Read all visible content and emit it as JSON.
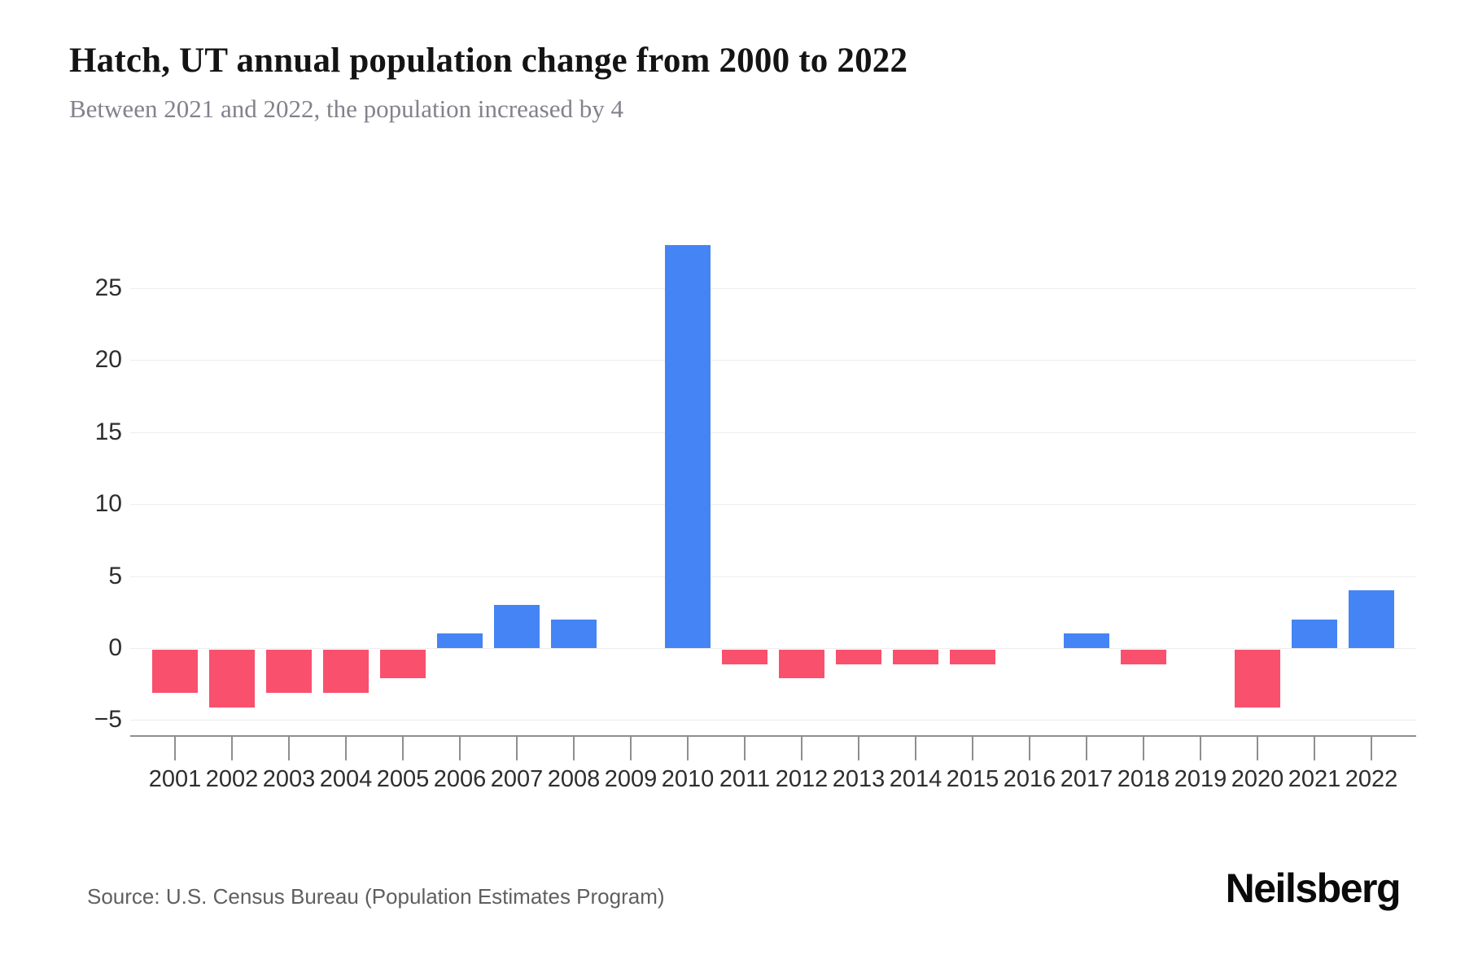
{
  "page": {
    "title": "Hatch, UT annual population change from 2000 to 2022",
    "subtitle": "Between 2021 and 2022, the population increased by 4",
    "source": "Source: U.S. Census Bureau (Population Estimates Program)",
    "brand": "Neilsberg"
  },
  "chart_data": {
    "type": "bar",
    "title": "Hatch, UT annual population change from 2000 to 2022",
    "subtitle": "Between 2021 and 2022, the population increased by 4",
    "categories": [
      "2001",
      "2002",
      "2003",
      "2004",
      "2005",
      "2006",
      "2007",
      "2008",
      "2009",
      "2010",
      "2011",
      "2012",
      "2013",
      "2014",
      "2015",
      "2016",
      "2017",
      "2018",
      "2019",
      "2020",
      "2021",
      "2022"
    ],
    "values": [
      -3,
      -4,
      -3,
      -3,
      -2,
      1,
      3,
      2,
      0,
      28,
      -1,
      -2,
      -1,
      -1,
      -1,
      0,
      1,
      -1,
      0,
      -4,
      2,
      4
    ],
    "xlabel": "",
    "ylabel": "",
    "y_ticks": [
      25,
      20,
      15,
      10,
      5,
      0,
      -5
    ],
    "ylim": [
      -5,
      28
    ],
    "grid": true,
    "legend": false,
    "colors": {
      "positive": "#4584f4",
      "negative": "#f9506e",
      "gridline": "#ededed",
      "axis": "#8f8f8f",
      "tick_label": "#2e2e2e"
    }
  }
}
